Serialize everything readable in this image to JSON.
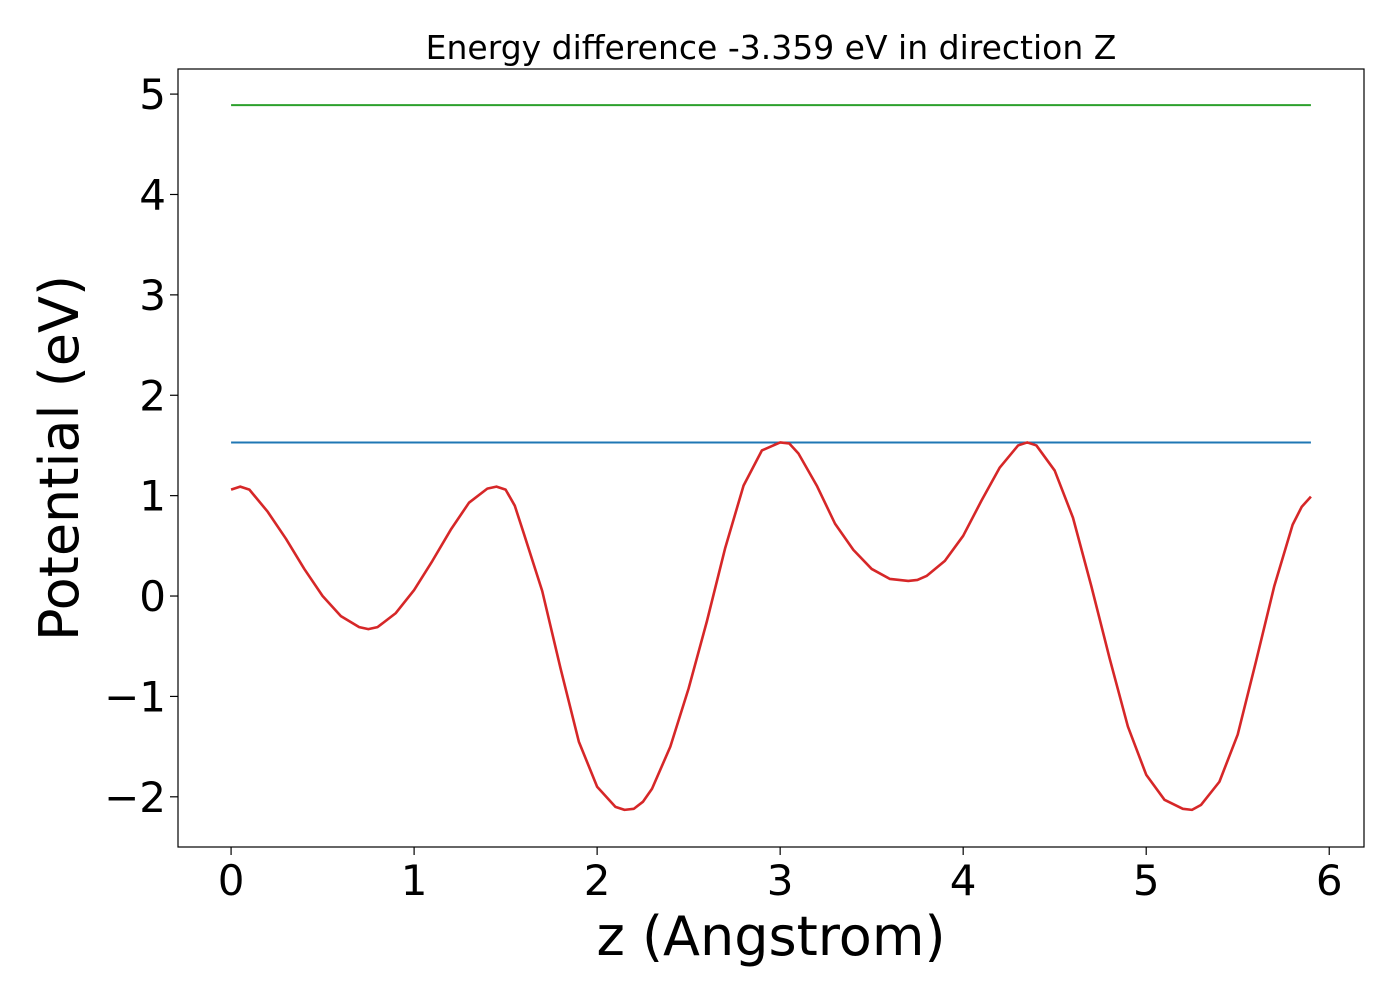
{
  "chart_data": {
    "type": "line",
    "title": "Energy difference -3.359 eV in direction Z",
    "xlabel": "z (Angstrom)",
    "ylabel": "Potential (eV)",
    "xlim": [
      -0.29,
      6.19
    ],
    "ylim": [
      -2.5,
      5.25
    ],
    "xticks": [
      0,
      1,
      2,
      3,
      4,
      5,
      6
    ],
    "xtick_labels": [
      "0",
      "1",
      "2",
      "3",
      "4",
      "5",
      "6"
    ],
    "yticks": [
      -2,
      -1,
      0,
      1,
      2,
      3,
      4,
      5
    ],
    "ytick_labels": [
      "−2",
      "−1",
      "0",
      "1",
      "2",
      "3",
      "4",
      "5"
    ],
    "grid": false,
    "series": [
      {
        "color": "#2ca02c",
        "x": [
          0,
          5.9
        ],
        "y": [
          4.89,
          4.89
        ]
      },
      {
        "color": "#1f77b4",
        "x": [
          0,
          5.9
        ],
        "y": [
          1.53,
          1.53
        ]
      },
      {
        "color": "#d62728",
        "x": [
          0,
          0.05,
          0.1,
          0.2,
          0.3,
          0.4,
          0.5,
          0.6,
          0.7,
          0.75,
          0.8,
          0.9,
          1.0,
          1.1,
          1.2,
          1.3,
          1.4,
          1.45,
          1.5,
          1.55,
          1.6,
          1.7,
          1.8,
          1.9,
          2.0,
          2.1,
          2.15,
          2.2,
          2.25,
          2.3,
          2.4,
          2.5,
          2.6,
          2.7,
          2.8,
          2.9,
          3.0,
          3.05,
          3.1,
          3.2,
          3.3,
          3.4,
          3.5,
          3.6,
          3.7,
          3.75,
          3.8,
          3.9,
          4.0,
          4.1,
          4.2,
          4.3,
          4.35,
          4.4,
          4.5,
          4.6,
          4.7,
          4.8,
          4.9,
          5.0,
          5.1,
          5.2,
          5.25,
          5.3,
          5.4,
          5.5,
          5.6,
          5.7,
          5.8,
          5.85,
          5.9
        ],
        "y": [
          1.06,
          1.09,
          1.06,
          0.84,
          0.57,
          0.27,
          0.0,
          -0.2,
          -0.31,
          -0.33,
          -0.31,
          -0.17,
          0.06,
          0.35,
          0.66,
          0.93,
          1.07,
          1.09,
          1.06,
          0.9,
          0.62,
          0.05,
          -0.72,
          -1.45,
          -1.9,
          -2.1,
          -2.13,
          -2.12,
          -2.05,
          -1.92,
          -1.5,
          -0.92,
          -0.25,
          0.48,
          1.1,
          1.45,
          1.53,
          1.52,
          1.42,
          1.1,
          0.72,
          0.46,
          0.27,
          0.17,
          0.15,
          0.16,
          0.2,
          0.35,
          0.6,
          0.95,
          1.28,
          1.5,
          1.53,
          1.5,
          1.25,
          0.78,
          0.1,
          -0.62,
          -1.3,
          -1.78,
          -2.03,
          -2.12,
          -2.13,
          -2.08,
          -1.85,
          -1.38,
          -0.65,
          0.1,
          0.71,
          0.89,
          0.99
        ]
      }
    ]
  }
}
